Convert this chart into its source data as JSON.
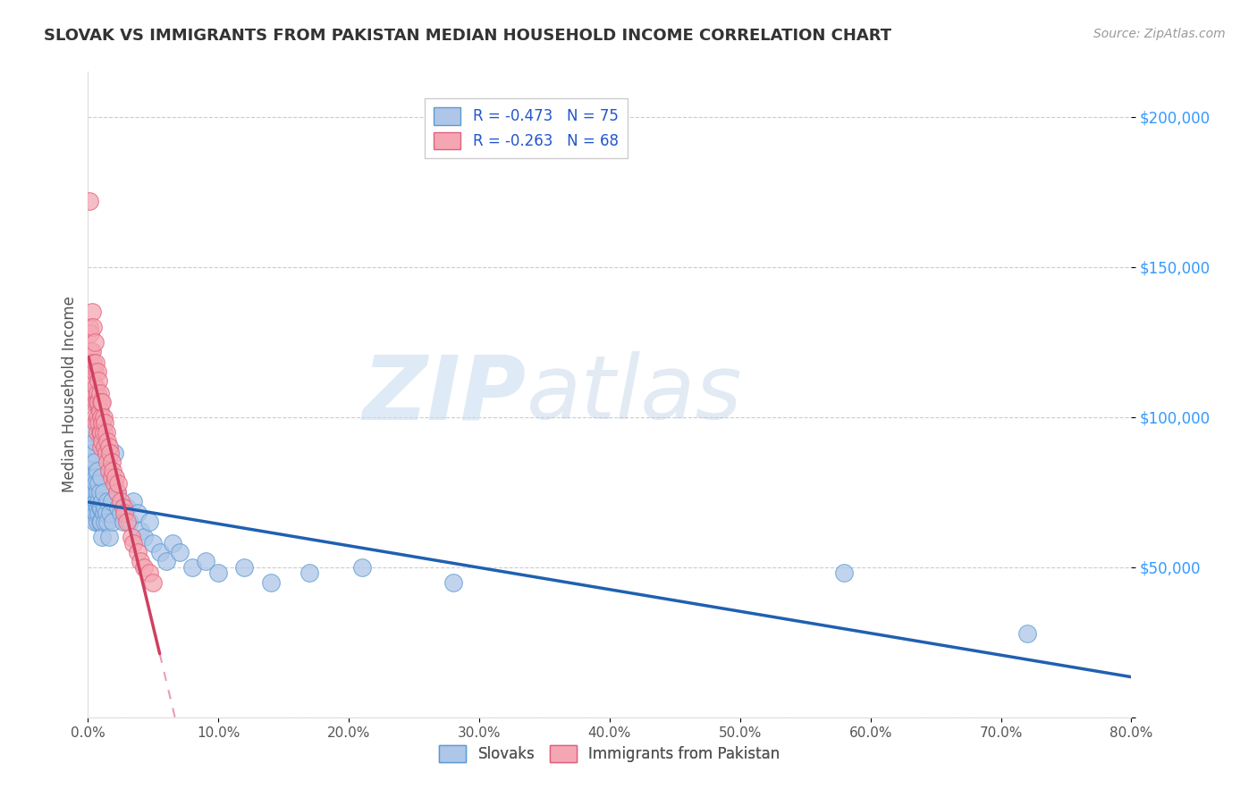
{
  "title": "SLOVAK VS IMMIGRANTS FROM PAKISTAN MEDIAN HOUSEHOLD INCOME CORRELATION CHART",
  "source": "Source: ZipAtlas.com",
  "ylabel": "Median Household Income",
  "yticks": [
    0,
    50000,
    100000,
    150000,
    200000
  ],
  "ytick_labels": [
    "",
    "$50,000",
    "$100,000",
    "$150,000",
    "$200,000"
  ],
  "xlim": [
    0.0,
    0.8
  ],
  "ylim": [
    0,
    215000
  ],
  "r_slovak": -0.473,
  "n_slovak": 75,
  "r_pakistan": -0.263,
  "n_pakistan": 68,
  "blue_scatter_color": "#aec6e8",
  "blue_edge_color": "#5b9bd5",
  "blue_line_color": "#2060b0",
  "pink_scatter_color": "#f4a7b2",
  "pink_edge_color": "#e06080",
  "pink_line_color": "#d04060",
  "legend_label_slovak": "Slovaks",
  "legend_label_pakistan": "Immigrants from Pakistan",
  "watermark_zip": "ZIP",
  "watermark_atlas": "atlas",
  "slovaks_x": [
    0.001,
    0.001,
    0.002,
    0.002,
    0.002,
    0.003,
    0.003,
    0.003,
    0.003,
    0.004,
    0.004,
    0.004,
    0.004,
    0.005,
    0.005,
    0.005,
    0.005,
    0.005,
    0.006,
    0.006,
    0.006,
    0.006,
    0.007,
    0.007,
    0.007,
    0.007,
    0.008,
    0.008,
    0.008,
    0.009,
    0.009,
    0.009,
    0.01,
    0.01,
    0.01,
    0.011,
    0.011,
    0.012,
    0.012,
    0.013,
    0.013,
    0.014,
    0.015,
    0.015,
    0.016,
    0.017,
    0.018,
    0.019,
    0.02,
    0.022,
    0.023,
    0.025,
    0.027,
    0.03,
    0.032,
    0.035,
    0.038,
    0.04,
    0.043,
    0.047,
    0.05,
    0.055,
    0.06,
    0.065,
    0.07,
    0.08,
    0.09,
    0.1,
    0.12,
    0.14,
    0.17,
    0.21,
    0.28,
    0.58,
    0.72
  ],
  "slovaks_y": [
    88000,
    82000,
    90000,
    78000,
    85000,
    80000,
    75000,
    70000,
    95000,
    78000,
    72000,
    88000,
    68000,
    85000,
    75000,
    70000,
    65000,
    92000,
    80000,
    72000,
    68000,
    78000,
    75000,
    70000,
    65000,
    82000,
    72000,
    68000,
    78000,
    70000,
    65000,
    75000,
    70000,
    65000,
    80000,
    72000,
    60000,
    68000,
    75000,
    65000,
    70000,
    68000,
    72000,
    65000,
    60000,
    68000,
    72000,
    65000,
    88000,
    75000,
    70000,
    68000,
    65000,
    70000,
    65000,
    72000,
    68000,
    62000,
    60000,
    65000,
    58000,
    55000,
    52000,
    58000,
    55000,
    50000,
    52000,
    48000,
    50000,
    45000,
    48000,
    50000,
    45000,
    48000,
    28000
  ],
  "pakistan_x": [
    0.001,
    0.001,
    0.002,
    0.002,
    0.002,
    0.003,
    0.003,
    0.003,
    0.003,
    0.004,
    0.004,
    0.004,
    0.004,
    0.005,
    0.005,
    0.005,
    0.005,
    0.006,
    0.006,
    0.006,
    0.006,
    0.007,
    0.007,
    0.007,
    0.007,
    0.007,
    0.008,
    0.008,
    0.008,
    0.009,
    0.009,
    0.009,
    0.01,
    0.01,
    0.01,
    0.01,
    0.011,
    0.011,
    0.011,
    0.012,
    0.012,
    0.013,
    0.013,
    0.014,
    0.014,
    0.015,
    0.015,
    0.016,
    0.016,
    0.017,
    0.018,
    0.018,
    0.019,
    0.02,
    0.021,
    0.022,
    0.023,
    0.025,
    0.027,
    0.028,
    0.03,
    0.033,
    0.035,
    0.038,
    0.04,
    0.043,
    0.047,
    0.05
  ],
  "pakistan_y": [
    172000,
    130000,
    128000,
    122000,
    118000,
    135000,
    122000,
    115000,
    108000,
    130000,
    118000,
    112000,
    105000,
    125000,
    115000,
    108000,
    100000,
    118000,
    110000,
    105000,
    98000,
    115000,
    108000,
    105000,
    100000,
    95000,
    112000,
    105000,
    98000,
    108000,
    102000,
    95000,
    105000,
    100000,
    95000,
    90000,
    105000,
    98000,
    92000,
    100000,
    95000,
    98000,
    90000,
    95000,
    88000,
    92000,
    85000,
    90000,
    82000,
    88000,
    85000,
    80000,
    82000,
    78000,
    80000,
    75000,
    78000,
    72000,
    70000,
    68000,
    65000,
    60000,
    58000,
    55000,
    52000,
    50000,
    48000,
    45000
  ],
  "pink_trendline_x_start": 0.0005,
  "pink_trendline_x_end": 0.055,
  "blue_trendline_x_start": 0.0005,
  "blue_trendline_x_end": 0.8
}
